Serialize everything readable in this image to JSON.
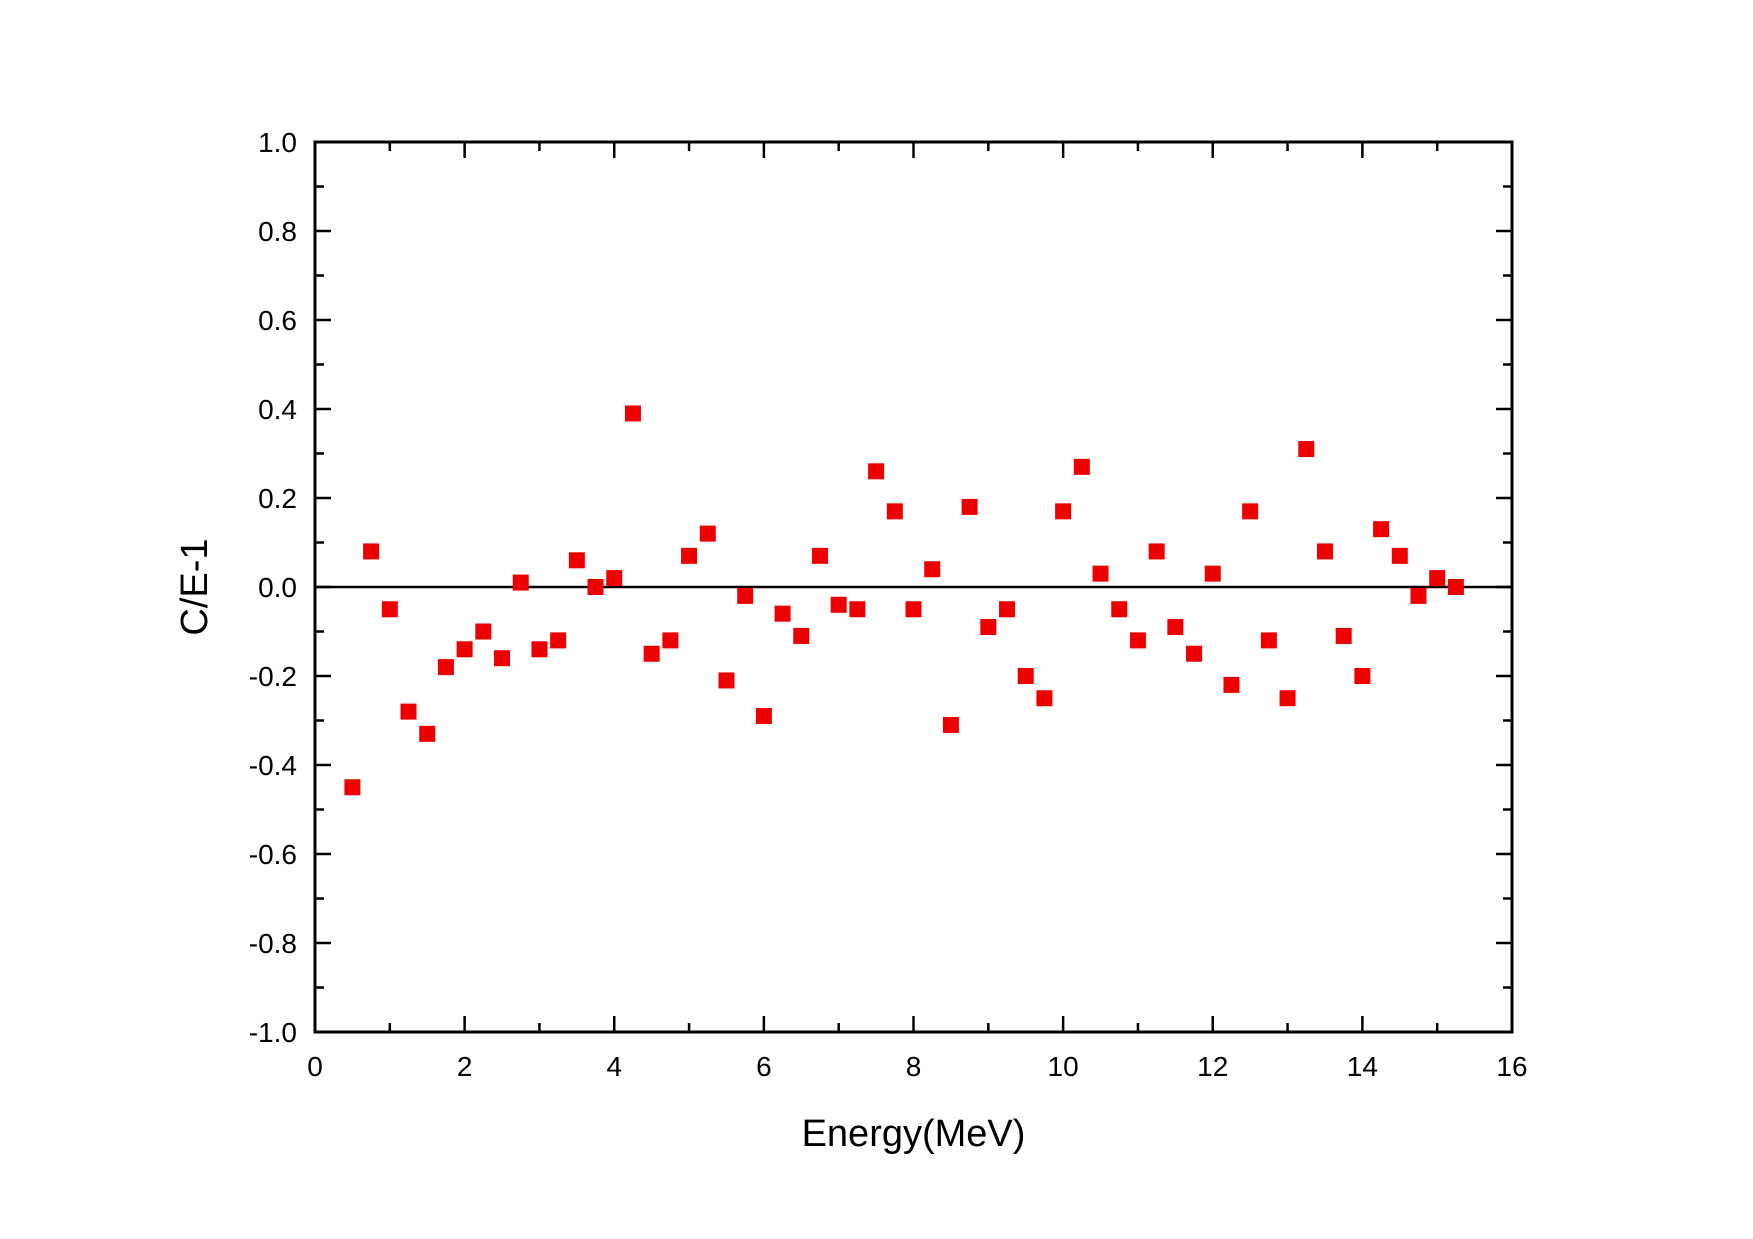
{
  "chart_data": {
    "type": "scatter",
    "title": "",
    "xlabel": "Energy(MeV)",
    "ylabel": "C/E-1",
    "xlim": [
      0,
      16
    ],
    "ylim": [
      -1.0,
      1.0
    ],
    "x_ticks": [
      0,
      2,
      4,
      6,
      8,
      10,
      12,
      14,
      16
    ],
    "x_tick_labels": [
      "0",
      "2",
      "4",
      "6",
      "8",
      "10",
      "12",
      "14",
      "16"
    ],
    "y_ticks": [
      -1.0,
      -0.8,
      -0.6,
      -0.4,
      -0.2,
      0.0,
      0.2,
      0.4,
      0.6,
      0.8,
      1.0
    ],
    "y_tick_labels": [
      "-1.0",
      "-0.8",
      "-0.6",
      "-0.4",
      "-0.2",
      "0.0",
      "0.2",
      "0.4",
      "0.6",
      "0.8",
      "1.0"
    ],
    "reference_line_y": 0.0,
    "grid": false,
    "marker": "square",
    "marker_color": "#ee0000",
    "series": [
      {
        "x": [
          0.5,
          0.75,
          1.0,
          1.25,
          1.5,
          1.75,
          2.0,
          2.25,
          2.5,
          2.75,
          3.0,
          3.25,
          3.5,
          3.75,
          4.0,
          4.25,
          4.5,
          4.75,
          5.0,
          5.25,
          5.5,
          5.75,
          6.0,
          6.25,
          6.5,
          6.75,
          7.0,
          7.25,
          7.5,
          7.75,
          8.0,
          8.25,
          8.5,
          8.75,
          9.0,
          9.25,
          9.5,
          9.75,
          10.0,
          10.25,
          10.5,
          10.75,
          11.0,
          11.25,
          11.5,
          11.75,
          12.0,
          12.25,
          12.5,
          12.75,
          13.0,
          13.25,
          13.5,
          13.75,
          14.0,
          14.25,
          14.5,
          14.75,
          15.0,
          15.25
        ],
        "y": [
          -0.45,
          0.08,
          -0.05,
          -0.28,
          -0.33,
          -0.18,
          -0.14,
          -0.1,
          -0.16,
          0.01,
          -0.14,
          -0.12,
          0.06,
          0.0,
          0.02,
          0.39,
          -0.15,
          -0.12,
          0.07,
          0.12,
          -0.21,
          -0.02,
          -0.29,
          -0.06,
          -0.11,
          0.07,
          -0.04,
          -0.05,
          0.26,
          0.17,
          -0.05,
          0.04,
          -0.31,
          0.18,
          -0.09,
          -0.05,
          -0.2,
          -0.25,
          0.17,
          0.27,
          0.03,
          -0.05,
          -0.12,
          0.08,
          -0.09,
          -0.15,
          0.03,
          -0.22,
          0.17,
          -0.12,
          -0.25,
          0.31,
          0.08,
          -0.11,
          -0.2,
          0.13,
          0.07,
          -0.02,
          0.02,
          0.0
        ]
      }
    ]
  }
}
